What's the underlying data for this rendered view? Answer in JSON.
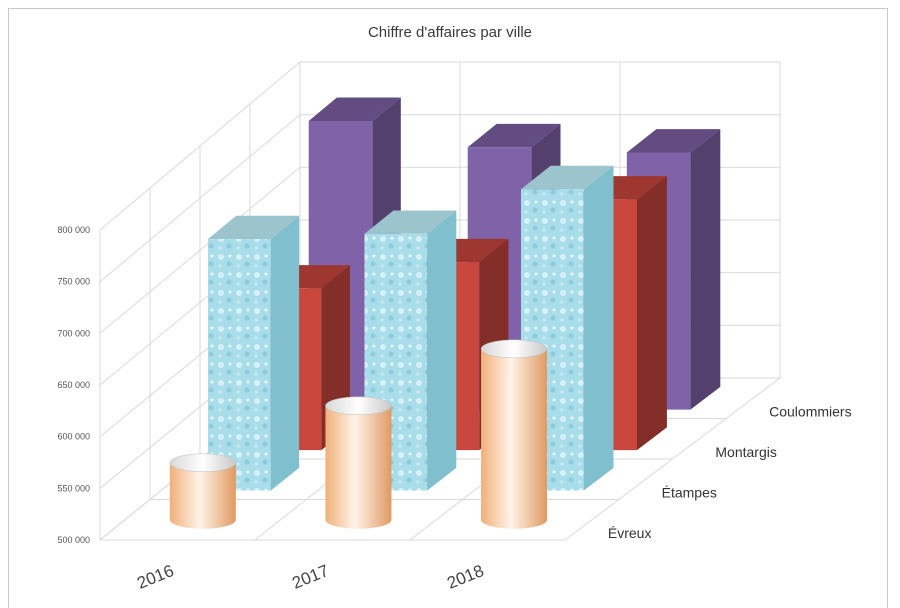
{
  "chart_data": {
    "type": "bar",
    "title": "Chiffre d'affaires par ville",
    "categories": [
      "2016",
      "2017",
      "2018"
    ],
    "series": [
      {
        "name": "Coulommiers",
        "values": [
          775000,
          750000,
          745000
        ],
        "color": "#7f62a7"
      },
      {
        "name": "Montargis",
        "values": [
          655000,
          680000,
          740000
        ],
        "color": "#c9463d"
      },
      {
        "name": "Étampes",
        "values": [
          742000,
          747000,
          790000
        ],
        "color": "#4a7ebb"
      },
      {
        "name": "Évreux",
        "values": [
          555000,
          610000,
          665000
        ],
        "color": "#f4c49d"
      }
    ],
    "yticks": [
      "500 000",
      "550 000",
      "600 000",
      "650 000",
      "700 000",
      "750 000",
      "800 000"
    ],
    "ylim": [
      500000,
      800000
    ],
    "grid": true,
    "legend": "none"
  }
}
